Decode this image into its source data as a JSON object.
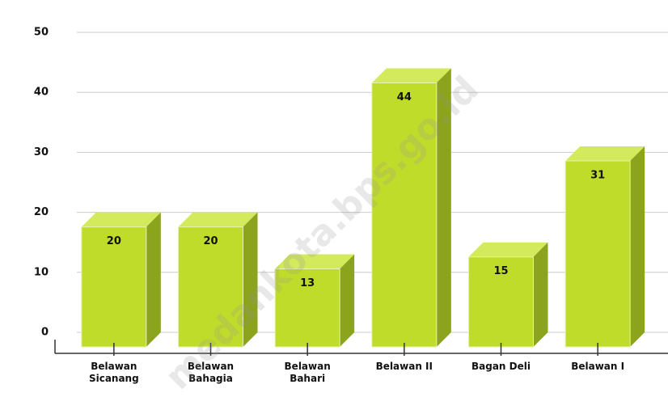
{
  "chart_data": {
    "type": "bar3d",
    "categories": [
      "Belawan Sicanang",
      "Belawan Bahagia",
      "Belawan Bahari",
      "Belawan II",
      "Bagan Deli",
      "Belawan I"
    ],
    "values": [
      20,
      20,
      13,
      44,
      15,
      31
    ],
    "color": "#c0dc2a",
    "ylim": [
      0,
      50
    ],
    "yticks": [
      0,
      10,
      20,
      30,
      40,
      50
    ],
    "grid": true,
    "watermark": "medankota.bps.go.id"
  }
}
